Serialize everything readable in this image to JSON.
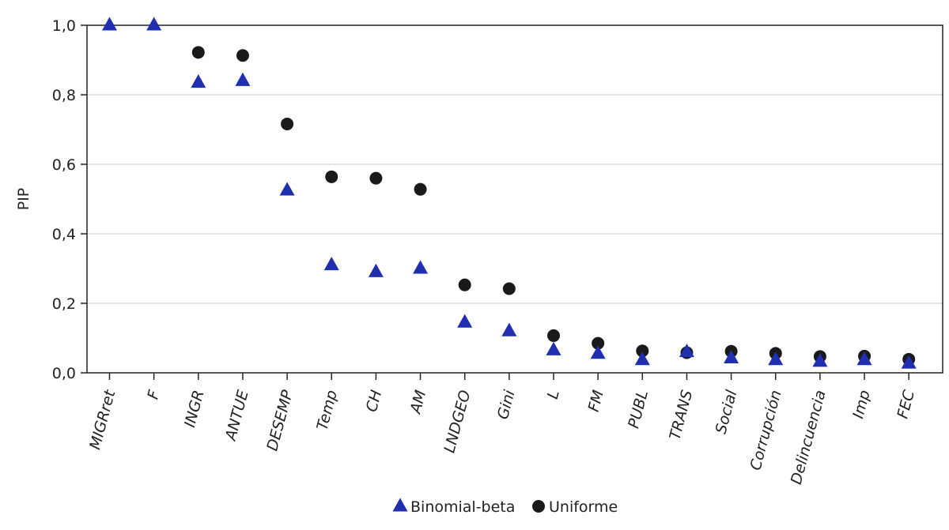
{
  "chart_data": {
    "type": "scatter",
    "ylabel": "PIP",
    "xlabel": "",
    "ylim": [
      0,
      1
    ],
    "yticks": [
      "0,0",
      "0,2",
      "0,4",
      "0,6",
      "0,8",
      "1,0"
    ],
    "ytick_values": [
      0,
      0.2,
      0.4,
      0.6,
      0.8,
      1.0
    ],
    "grid": true,
    "legend_position": "bottom",
    "categories": [
      "MIGRret",
      "F",
      "INGR",
      "ANTUE",
      "DESEMP",
      "Temp",
      "CH",
      "AM",
      "LNDGEO",
      "Gini",
      "L",
      "FM",
      "PUBL",
      "TRANS",
      "Social",
      "Corrupción",
      "Delincuencia",
      "Imp",
      "FEC"
    ],
    "series": [
      {
        "name": "Binomial-beta",
        "marker": "triangle",
        "color": "#1f2fb0",
        "values": [
          1.0,
          1.0,
          0.835,
          0.84,
          0.525,
          0.31,
          0.29,
          0.3,
          0.145,
          0.12,
          0.065,
          0.055,
          0.037,
          0.06,
          0.042,
          0.037,
          0.032,
          0.037,
          0.027
        ]
      },
      {
        "name": "Uniforme",
        "marker": "circle",
        "color": "#1a1a1a",
        "values": [
          null,
          null,
          0.922,
          0.913,
          0.716,
          0.564,
          0.56,
          0.528,
          0.253,
          0.242,
          0.107,
          0.085,
          0.063,
          0.058,
          0.062,
          0.056,
          0.047,
          0.048,
          0.039
        ]
      }
    ]
  }
}
